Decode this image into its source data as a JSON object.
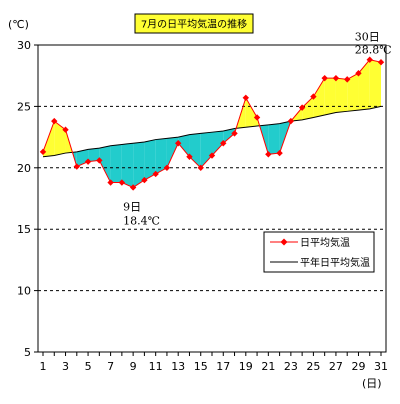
{
  "chart_data": {
    "type": "line",
    "title": "7月の日平均気温の推移",
    "y_unit_label": "(℃)",
    "x_unit_label": "(日)",
    "x": [
      1,
      2,
      3,
      4,
      5,
      6,
      7,
      8,
      9,
      10,
      11,
      12,
      13,
      14,
      15,
      16,
      17,
      18,
      19,
      20,
      21,
      22,
      23,
      24,
      25,
      26,
      27,
      28,
      29,
      30,
      31
    ],
    "xlim": [
      1,
      31
    ],
    "ylim": [
      5,
      30
    ],
    "y_ticks": [
      5,
      10,
      15,
      20,
      25,
      30
    ],
    "x_tick_labels": [
      "1",
      "3",
      "5",
      "7",
      "9",
      "11",
      "13",
      "15",
      "17",
      "19",
      "21",
      "23",
      "25",
      "27",
      "29",
      "31"
    ],
    "grid": "horizontal dashed",
    "legend_position": "right",
    "series": [
      {
        "name": "日平均気温",
        "color": "#ff0000",
        "marker": "diamond",
        "values": [
          21.3,
          23.8,
          23.1,
          20.1,
          20.5,
          20.6,
          18.8,
          18.8,
          18.4,
          19.0,
          19.5,
          20.0,
          22.0,
          20.9,
          20.0,
          21.0,
          22.0,
          22.8,
          25.7,
          24.1,
          21.1,
          21.2,
          23.8,
          24.9,
          25.8,
          27.3,
          27.3,
          27.2,
          27.7,
          28.8,
          28.6
        ]
      },
      {
        "name": "平年日平均気温",
        "color": "#000000",
        "marker": "none",
        "values": [
          20.9,
          21.0,
          21.2,
          21.3,
          21.5,
          21.6,
          21.8,
          21.9,
          22.0,
          22.1,
          22.3,
          22.4,
          22.5,
          22.7,
          22.8,
          22.9,
          23.0,
          23.2,
          23.3,
          23.4,
          23.5,
          23.6,
          23.8,
          23.9,
          24.1,
          24.3,
          24.5,
          24.6,
          24.7,
          24.8,
          25.0
        ]
      }
    ],
    "fill_colors": {
      "above_normal": "#ffff33",
      "below_normal": "#22cccc"
    },
    "annotations": [
      {
        "day": 9,
        "value": 18.4,
        "line1": "9日",
        "line2": "18.4℃"
      },
      {
        "day": 30,
        "value": 28.8,
        "line1": "30日",
        "line2": "28.8℃"
      }
    ]
  }
}
